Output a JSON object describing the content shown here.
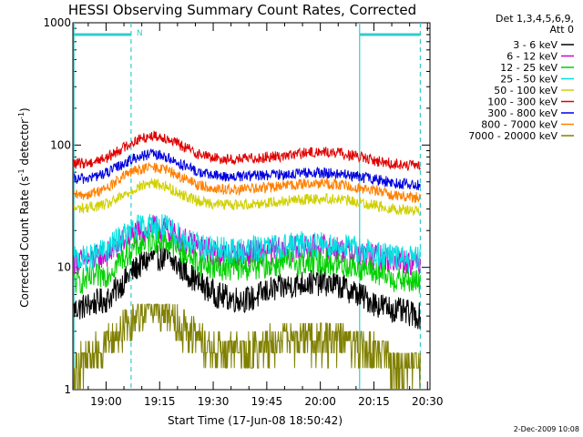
{
  "chart_data": {
    "type": "line",
    "title": "HESSI Observing Summary Count Rates, Corrected",
    "xlabel": "Start Time (17-Jun-08 18:50:42)",
    "ylabel_parts": [
      "Corrected Count Rate (s",
      "-1",
      " detector",
      "-1",
      ")"
    ],
    "yscale": "log",
    "ylim": [
      1,
      1000
    ],
    "xlim_minutes": [
      0,
      100
    ],
    "y_ticks": [
      {
        "value": 1,
        "label": "1"
      },
      {
        "value": 10,
        "label": "10"
      },
      {
        "value": 100,
        "label": "100"
      },
      {
        "value": 1000,
        "label": "1000"
      }
    ],
    "x_ticks": [
      {
        "value": 9.3,
        "label": "19:00"
      },
      {
        "value": 24.3,
        "label": "19:15"
      },
      {
        "value": 39.3,
        "label": "19:30"
      },
      {
        "value": 54.3,
        "label": "19:45"
      },
      {
        "value": 69.3,
        "label": "20:00"
      },
      {
        "value": 84.3,
        "label": "20:15"
      },
      {
        "value": 99.3,
        "label": "20:30"
      }
    ],
    "legend_header": [
      "Det 1,3,4,5,6,9,",
      "Att 0"
    ],
    "legend_position": "right",
    "annotation_flag": "N",
    "boundaries": {
      "solid_minutes": [
        0.3,
        80.3
      ],
      "dashed_minutes": [
        16.3,
        97.3
      ],
      "flag_segments_minutes": [
        [
          0.3,
          16.3
        ],
        [
          80.3,
          97.3
        ]
      ],
      "flag_value": 800
    },
    "x_range_minutes": [
      0.3,
      97.3
    ],
    "series": [
      {
        "name": "3 - 6 keV",
        "color": "#000000",
        "x": [
          0,
          5,
          10,
          14,
          18,
          22,
          26,
          30,
          35,
          40,
          45,
          50,
          55,
          60,
          65,
          70,
          75,
          80,
          85,
          90,
          97
        ],
        "y": [
          4.5,
          5,
          5.5,
          7.5,
          10,
          12,
          12,
          10,
          7.5,
          6,
          5.5,
          5.5,
          6.5,
          7,
          7.5,
          7.5,
          7,
          6,
          5,
          4.5,
          4
        ]
      },
      {
        "name": "6 - 12 keV",
        "color": "#d000d0",
        "x": [
          0,
          5,
          10,
          14,
          18,
          22,
          26,
          30,
          35,
          40,
          45,
          50,
          55,
          60,
          65,
          70,
          75,
          80,
          85,
          90,
          97
        ],
        "y": [
          11,
          11.5,
          13,
          16,
          19,
          21,
          20,
          17,
          14.5,
          13,
          12.5,
          13,
          13.5,
          14,
          14.5,
          14.5,
          14,
          13,
          12,
          11.5,
          11
        ]
      },
      {
        "name": "12 - 25 keV",
        "color": "#00d000",
        "x": [
          0,
          5,
          10,
          14,
          18,
          22,
          26,
          30,
          35,
          40,
          45,
          50,
          55,
          60,
          65,
          70,
          75,
          80,
          85,
          90,
          97
        ],
        "y": [
          7.5,
          8,
          9,
          12,
          15,
          17,
          16.5,
          14,
          11,
          10,
          10,
          10,
          10.5,
          11,
          11,
          11,
          10.5,
          10,
          9,
          8,
          7.5
        ]
      },
      {
        "name": "25 - 50 keV",
        "color": "#00e0e0",
        "x": [
          0,
          5,
          10,
          14,
          18,
          22,
          26,
          30,
          35,
          40,
          45,
          50,
          55,
          60,
          65,
          70,
          75,
          80,
          85,
          90,
          97
        ],
        "y": [
          11.5,
          12,
          14,
          18,
          21,
          22,
          21,
          18,
          15,
          14,
          13.5,
          14,
          14.5,
          15,
          15.5,
          15.5,
          15,
          14,
          13,
          12,
          11.5
        ]
      },
      {
        "name": "50 - 100 keV",
        "color": "#d0d000",
        "x": [
          0,
          5,
          10,
          14,
          18,
          22,
          26,
          30,
          35,
          40,
          45,
          50,
          55,
          60,
          65,
          70,
          75,
          80,
          85,
          90,
          97
        ],
        "y": [
          30,
          31,
          33,
          38,
          45,
          49,
          46,
          40,
          35,
          33,
          32.5,
          33,
          34,
          35,
          36,
          36.5,
          36,
          34,
          32,
          30,
          29
        ]
      },
      {
        "name": "100 - 300 keV",
        "color": "#e00000",
        "x": [
          0,
          5,
          10,
          14,
          18,
          22,
          26,
          30,
          35,
          40,
          45,
          50,
          55,
          60,
          65,
          70,
          75,
          80,
          85,
          90,
          97
        ],
        "y": [
          70,
          72,
          80,
          95,
          110,
          120,
          115,
          100,
          85,
          78,
          76,
          78,
          80,
          82,
          86,
          88,
          86,
          80,
          74,
          70,
          67
        ]
      },
      {
        "name": "300 - 800 keV",
        "color": "#0000e0",
        "x": [
          0,
          5,
          10,
          14,
          18,
          22,
          26,
          30,
          35,
          40,
          45,
          50,
          55,
          60,
          65,
          70,
          75,
          80,
          85,
          90,
          97
        ],
        "y": [
          52,
          54,
          60,
          70,
          80,
          84,
          80,
          70,
          60,
          56,
          55,
          56,
          57,
          58,
          59,
          59,
          58,
          55,
          52,
          49,
          47
        ]
      },
      {
        "name": "800 - 7000 keV",
        "color": "#ff8000",
        "x": [
          0,
          5,
          10,
          14,
          18,
          22,
          26,
          30,
          35,
          40,
          45,
          50,
          55,
          60,
          65,
          70,
          75,
          80,
          85,
          90,
          97
        ],
        "y": [
          38,
          40,
          45,
          55,
          63,
          66,
          63,
          55,
          47,
          44,
          43,
          44,
          45,
          47,
          48,
          49,
          47,
          45,
          42,
          39,
          37
        ]
      },
      {
        "name": "7000 - 20000 keV",
        "color": "#808000",
        "x": [
          0,
          5,
          10,
          14,
          18,
          22,
          26,
          30,
          35,
          40,
          45,
          50,
          55,
          60,
          65,
          70,
          75,
          80,
          85,
          90,
          97
        ],
        "y": [
          1.5,
          1.8,
          2.3,
          3,
          4,
          5,
          4.5,
          3.5,
          2.5,
          2,
          2,
          2,
          2.3,
          2.5,
          2.6,
          2.5,
          2.4,
          2.2,
          2,
          1.6,
          1.5
        ]
      }
    ]
  },
  "footer": {
    "date": "2-Dec-2009 10:08"
  }
}
